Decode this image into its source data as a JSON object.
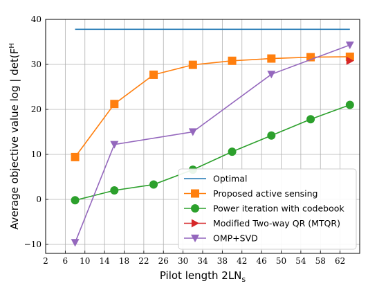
{
  "chart_data": {
    "type": "line",
    "xlabel": "Pilot length 2LN",
    "xlabel_sub": "s",
    "ylabel": "Average objective value log | det(F",
    "ylabel_rest": "H",
    "x_ticks": [
      "2",
      "6",
      "10",
      "14",
      "18",
      "22",
      "26",
      "30",
      "34",
      "38",
      "42",
      "46",
      "50",
      "54",
      "58",
      "62"
    ],
    "y_ticks": [
      "−10",
      "0",
      "10",
      "20",
      "30",
      "40"
    ],
    "xlim": [
      2,
      66
    ],
    "ylim": [
      -12,
      40
    ],
    "grid": true,
    "legend_position": "lower-right",
    "series": [
      {
        "name": "Optimal",
        "color": "#1f77b4",
        "marker": "none",
        "x": [
          8,
          64
        ],
        "y": [
          37.8,
          37.8
        ]
      },
      {
        "name": "Proposed active sensing",
        "color": "#ff7f0e",
        "marker": "square",
        "x": [
          8,
          16,
          24,
          32,
          40,
          48,
          56,
          64
        ],
        "y": [
          9.4,
          21.2,
          27.7,
          29.9,
          30.8,
          31.3,
          31.6,
          31.7
        ]
      },
      {
        "name": "Power iteration with codebook",
        "color": "#2ca02c",
        "marker": "circle",
        "x": [
          8,
          16,
          24,
          32,
          40,
          48,
          56,
          64
        ],
        "y": [
          -0.2,
          2.0,
          3.3,
          6.6,
          10.6,
          14.2,
          17.8,
          21.0
        ]
      },
      {
        "name": "Modified Two-way QR (MTQR)",
        "color": "#d62728",
        "marker": "triangle-right",
        "x": [
          64
        ],
        "y": [
          30.8
        ]
      },
      {
        "name": "OMP+SVD",
        "color": "#9467bd",
        "marker": "triangle-down",
        "x": [
          8,
          16,
          32,
          48,
          64
        ],
        "y": [
          -9.6,
          12.2,
          15.0,
          27.8,
          34.3
        ]
      }
    ]
  }
}
